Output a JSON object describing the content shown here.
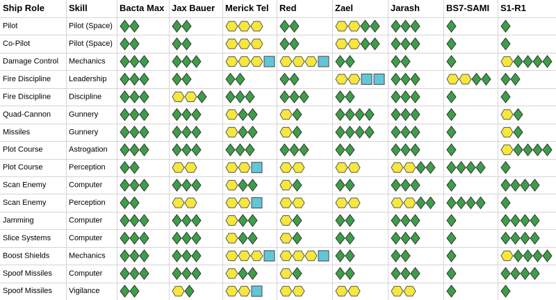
{
  "table": {
    "columns": [
      "Ship Role",
      "Skill",
      "Bacta Max",
      "Jax Bauer",
      "Merick Tel",
      "Red",
      "Zael",
      "Jarash",
      "BS7-SAMI",
      "S1-R1"
    ],
    "rows": [
      {
        "role": "Pilot",
        "skill": "Pilot (Space)",
        "dice": [
          [
            0,
            2,
            0
          ],
          [
            0,
            2,
            0
          ],
          [
            3,
            0,
            0
          ],
          [
            0,
            2,
            0
          ],
          [
            2,
            2,
            0
          ],
          [
            0,
            3,
            0
          ],
          [
            0,
            1,
            0
          ],
          [
            0,
            1,
            0
          ]
        ]
      },
      {
        "role": "Co-Pilot",
        "skill": "Pilot (Space)",
        "dice": [
          [
            0,
            2,
            0
          ],
          [
            0,
            2,
            0
          ],
          [
            3,
            0,
            0
          ],
          [
            0,
            2,
            0
          ],
          [
            2,
            2,
            0
          ],
          [
            0,
            3,
            0
          ],
          [
            0,
            1,
            0
          ],
          [
            0,
            1,
            0
          ]
        ]
      },
      {
        "role": "Damage Control",
        "skill": "Mechanics",
        "dice": [
          [
            0,
            3,
            0
          ],
          [
            0,
            3,
            0
          ],
          [
            3,
            0,
            1
          ],
          [
            3,
            0,
            1
          ],
          [
            0,
            2,
            0
          ],
          [
            0,
            2,
            0
          ],
          [
            0,
            1,
            0
          ],
          [
            1,
            4,
            0
          ]
        ]
      },
      {
        "role": "Fire Discipline",
        "skill": "Leadership",
        "dice": [
          [
            0,
            3,
            0
          ],
          [
            0,
            2,
            0
          ],
          [
            0,
            2,
            0
          ],
          [
            0,
            2,
            0
          ],
          [
            2,
            0,
            2
          ],
          [
            0,
            3,
            0
          ],
          [
            2,
            2,
            0
          ],
          [
            0,
            2,
            0
          ]
        ]
      },
      {
        "role": "Fire Discipline",
        "skill": "Discipline",
        "dice": [
          [
            0,
            3,
            0
          ],
          [
            2,
            1,
            0
          ],
          [
            0,
            3,
            0
          ],
          [
            0,
            3,
            0
          ],
          [
            0,
            2,
            0
          ],
          [
            0,
            3,
            0
          ],
          [
            0,
            1,
            0
          ],
          [
            0,
            1,
            0
          ]
        ]
      },
      {
        "role": "Quad-Cannon",
        "skill": "Gunnery",
        "dice": [
          [
            0,
            3,
            0
          ],
          [
            0,
            3,
            0
          ],
          [
            1,
            2,
            0
          ],
          [
            1,
            1,
            0
          ],
          [
            0,
            4,
            0
          ],
          [
            0,
            3,
            0
          ],
          [
            0,
            1,
            0
          ],
          [
            1,
            1,
            0
          ]
        ]
      },
      {
        "role": "Missiles",
        "skill": "Gunnery",
        "dice": [
          [
            0,
            3,
            0
          ],
          [
            0,
            3,
            0
          ],
          [
            1,
            2,
            0
          ],
          [
            1,
            1,
            0
          ],
          [
            0,
            4,
            0
          ],
          [
            0,
            3,
            0
          ],
          [
            0,
            1,
            0
          ],
          [
            1,
            1,
            0
          ]
        ]
      },
      {
        "role": "Plot Course",
        "skill": "Astrogation",
        "dice": [
          [
            0,
            3,
            0
          ],
          [
            0,
            3,
            0
          ],
          [
            0,
            3,
            0
          ],
          [
            0,
            3,
            0
          ],
          [
            0,
            2,
            0
          ],
          [
            0,
            3,
            0
          ],
          [
            0,
            1,
            0
          ],
          [
            1,
            4,
            0
          ]
        ]
      },
      {
        "role": "Plot Course",
        "skill": "Perception",
        "dice": [
          [
            0,
            2,
            0
          ],
          [
            2,
            0,
            0
          ],
          [
            2,
            0,
            1
          ],
          [
            2,
            0,
            0
          ],
          [
            2,
            0,
            0
          ],
          [
            2,
            2,
            0
          ],
          [
            0,
            4,
            0
          ],
          [
            0,
            1,
            0
          ]
        ]
      },
      {
        "role": "Scan Enemy",
        "skill": "Computer",
        "dice": [
          [
            0,
            3,
            0
          ],
          [
            0,
            3,
            0
          ],
          [
            1,
            2,
            0
          ],
          [
            1,
            1,
            0
          ],
          [
            0,
            2,
            0
          ],
          [
            0,
            3,
            0
          ],
          [
            0,
            1,
            0
          ],
          [
            0,
            4,
            0
          ]
        ]
      },
      {
        "role": "Scan Enemy",
        "skill": "Perception",
        "dice": [
          [
            0,
            2,
            0
          ],
          [
            2,
            0,
            0
          ],
          [
            2,
            0,
            1
          ],
          [
            2,
            0,
            0
          ],
          [
            2,
            0,
            0
          ],
          [
            2,
            2,
            0
          ],
          [
            0,
            4,
            0
          ],
          [
            0,
            1,
            0
          ]
        ]
      },
      {
        "role": "Jamming",
        "skill": "Computer",
        "dice": [
          [
            0,
            3,
            0
          ],
          [
            0,
            3,
            0
          ],
          [
            1,
            2,
            0
          ],
          [
            1,
            1,
            0
          ],
          [
            0,
            2,
            0
          ],
          [
            0,
            3,
            0
          ],
          [
            0,
            1,
            0
          ],
          [
            0,
            4,
            0
          ]
        ]
      },
      {
        "role": "Slice Systems",
        "skill": "Computer",
        "dice": [
          [
            0,
            3,
            0
          ],
          [
            0,
            3,
            0
          ],
          [
            1,
            2,
            0
          ],
          [
            1,
            1,
            0
          ],
          [
            0,
            2,
            0
          ],
          [
            0,
            3,
            0
          ],
          [
            0,
            1,
            0
          ],
          [
            0,
            4,
            0
          ]
        ]
      },
      {
        "role": "Boost Shields",
        "skill": "Mechanics",
        "dice": [
          [
            0,
            3,
            0
          ],
          [
            0,
            3,
            0
          ],
          [
            3,
            0,
            1
          ],
          [
            3,
            0,
            1
          ],
          [
            0,
            2,
            0
          ],
          [
            0,
            2,
            0
          ],
          [
            0,
            1,
            0
          ],
          [
            1,
            4,
            0
          ]
        ]
      },
      {
        "role": "Spoof Missiles",
        "skill": "Computer",
        "dice": [
          [
            0,
            3,
            0
          ],
          [
            0,
            3,
            0
          ],
          [
            1,
            2,
            0
          ],
          [
            1,
            1,
            0
          ],
          [
            0,
            2,
            0
          ],
          [
            0,
            3,
            0
          ],
          [
            0,
            1,
            0
          ],
          [
            0,
            4,
            0
          ]
        ]
      },
      {
        "role": "Spoof Missiles",
        "skill": "Vigilance",
        "dice": [
          [
            0,
            2,
            0
          ],
          [
            1,
            1,
            0
          ],
          [
            2,
            0,
            1
          ],
          [
            2,
            0,
            0
          ],
          [
            2,
            0,
            0
          ],
          [
            2,
            0,
            0
          ],
          [
            0,
            1,
            0
          ],
          [
            0,
            1,
            0
          ]
        ]
      }
    ]
  }
}
